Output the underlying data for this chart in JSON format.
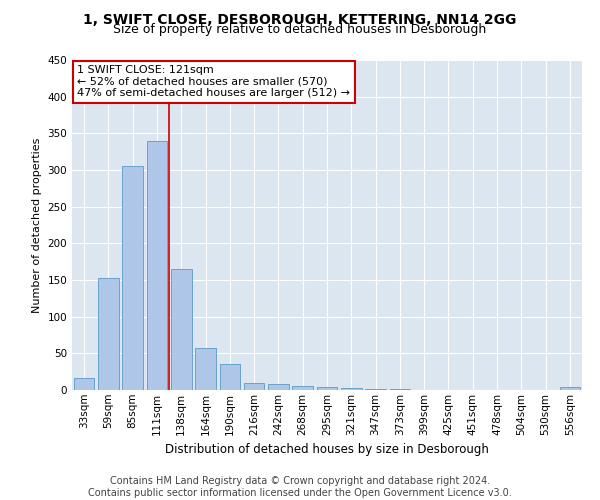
{
  "title": "1, SWIFT CLOSE, DESBOROUGH, KETTERING, NN14 2GG",
  "subtitle": "Size of property relative to detached houses in Desborough",
  "xlabel": "Distribution of detached houses by size in Desborough",
  "ylabel": "Number of detached properties",
  "categories": [
    "33sqm",
    "59sqm",
    "85sqm",
    "111sqm",
    "138sqm",
    "164sqm",
    "190sqm",
    "216sqm",
    "242sqm",
    "268sqm",
    "295sqm",
    "321sqm",
    "347sqm",
    "373sqm",
    "399sqm",
    "425sqm",
    "451sqm",
    "478sqm",
    "504sqm",
    "530sqm",
    "556sqm"
  ],
  "values": [
    17,
    153,
    305,
    340,
    165,
    57,
    35,
    10,
    8,
    5,
    4,
    3,
    2,
    2,
    0,
    0,
    0,
    0,
    0,
    0,
    4
  ],
  "bar_color": "#aec6e8",
  "bar_edge_color": "#5a9ac8",
  "vline_x": 3.5,
  "vline_color": "#cc0000",
  "annotation_text": "1 SWIFT CLOSE: 121sqm\n← 52% of detached houses are smaller (570)\n47% of semi-detached houses are larger (512) →",
  "annotation_box_color": "#ffffff",
  "annotation_box_edge_color": "#cc0000",
  "ylim": [
    0,
    450
  ],
  "yticks": [
    0,
    50,
    100,
    150,
    200,
    250,
    300,
    350,
    400,
    450
  ],
  "bg_color": "#dce6f0",
  "plot_bg_color": "#dce6f0",
  "footer": "Contains HM Land Registry data © Crown copyright and database right 2024.\nContains public sector information licensed under the Open Government Licence v3.0.",
  "title_fontsize": 10,
  "subtitle_fontsize": 9,
  "xlabel_fontsize": 8.5,
  "ylabel_fontsize": 8,
  "footer_fontsize": 7,
  "tick_fontsize": 7.5,
  "annot_fontsize": 8
}
